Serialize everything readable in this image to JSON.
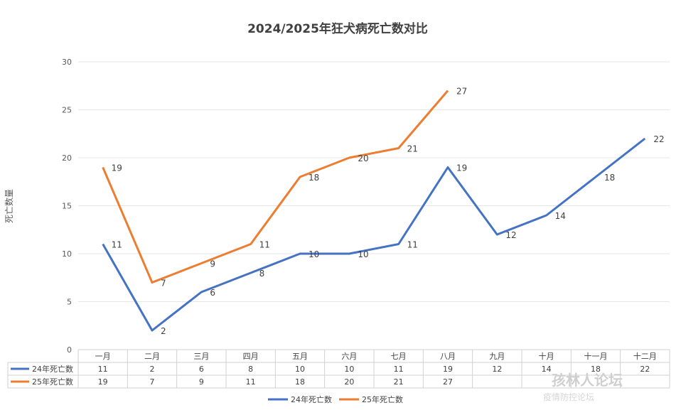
{
  "chart_data": {
    "type": "line",
    "title": "2024/2025年狂犬病死亡数对比",
    "ylabel": "死亡数量",
    "xlabel": "",
    "ylim": [
      0,
      30
    ],
    "yticks": [
      0,
      5,
      10,
      15,
      20,
      25,
      30
    ],
    "grid": true,
    "legend_placement": "bottom",
    "categories": [
      "一月",
      "二月",
      "三月",
      "四月",
      "五月",
      "六月",
      "七月",
      "八月",
      "九月",
      "十月",
      "十一月",
      "十二月"
    ],
    "series": [
      {
        "name": "24年死亡数",
        "color": "#4472C4",
        "values": [
          11,
          2,
          6,
          8,
          10,
          10,
          11,
          19,
          12,
          14,
          18,
          22
        ]
      },
      {
        "name": "25年死亡数",
        "color": "#ED7D31",
        "values": [
          19,
          7,
          9,
          11,
          18,
          20,
          21,
          27,
          null,
          null,
          null,
          null
        ]
      }
    ]
  },
  "watermark": {
    "main": "孩林人论坛",
    "sub": "疫情防控论坛"
  }
}
